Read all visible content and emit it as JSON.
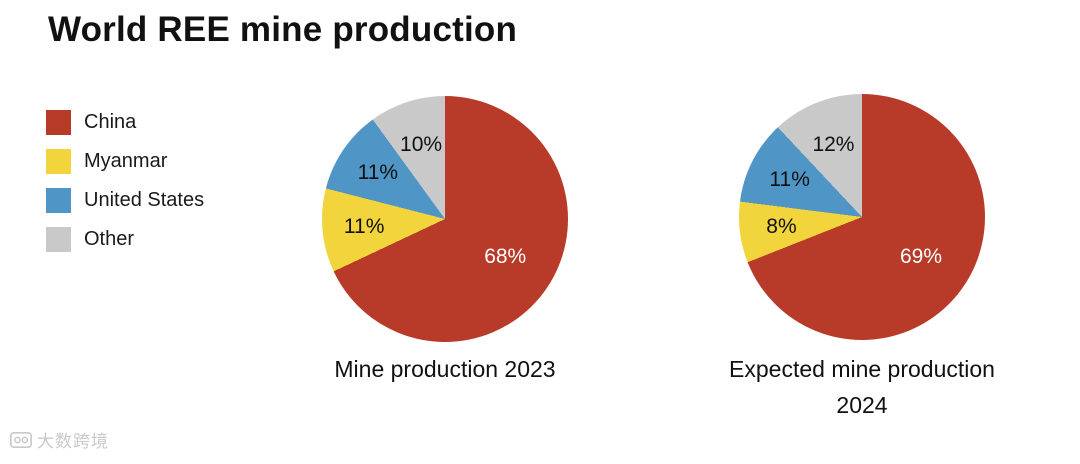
{
  "title": "World REE mine production",
  "legend": [
    {
      "label": "China",
      "color": "#b83a28"
    },
    {
      "label": "Myanmar",
      "color": "#f2d43c"
    },
    {
      "label": "United States",
      "color": "#4f96c6"
    },
    {
      "label": "Other",
      "color": "#c9c9c9"
    }
  ],
  "watermark": {
    "text": "大数跨境"
  },
  "chart_data": [
    {
      "type": "pie",
      "title": "Mine production 2023",
      "labels": [
        "China",
        "Myanmar",
        "United States",
        "Other"
      ],
      "values": [
        68,
        11,
        11,
        10
      ],
      "value_labels": [
        "68%",
        "11%",
        "11%",
        "10%"
      ],
      "colors": [
        "#b83a28",
        "#f2d43c",
        "#4f96c6",
        "#c9c9c9"
      ],
      "label_colors": [
        "#ffffff",
        "#111111",
        "#111111",
        "#111111"
      ],
      "label_radius": [
        0.58,
        0.66,
        0.66,
        0.63
      ],
      "start_angle_deg": 0,
      "direction": "clockwise",
      "legend_position": "left"
    },
    {
      "type": "pie",
      "title": "Expected mine production 2024",
      "labels": [
        "China",
        "Myanmar",
        "United States",
        "Other"
      ],
      "values": [
        69,
        8,
        11,
        12
      ],
      "value_labels": [
        "69%",
        "8%",
        "11%",
        "12%"
      ],
      "colors": [
        "#b83a28",
        "#f2d43c",
        "#4f96c6",
        "#c9c9c9"
      ],
      "label_colors": [
        "#ffffff",
        "#111111",
        "#111111",
        "#111111"
      ],
      "label_radius": [
        0.58,
        0.66,
        0.66,
        0.63
      ],
      "start_angle_deg": 0,
      "direction": "clockwise",
      "legend_position": "left"
    }
  ]
}
